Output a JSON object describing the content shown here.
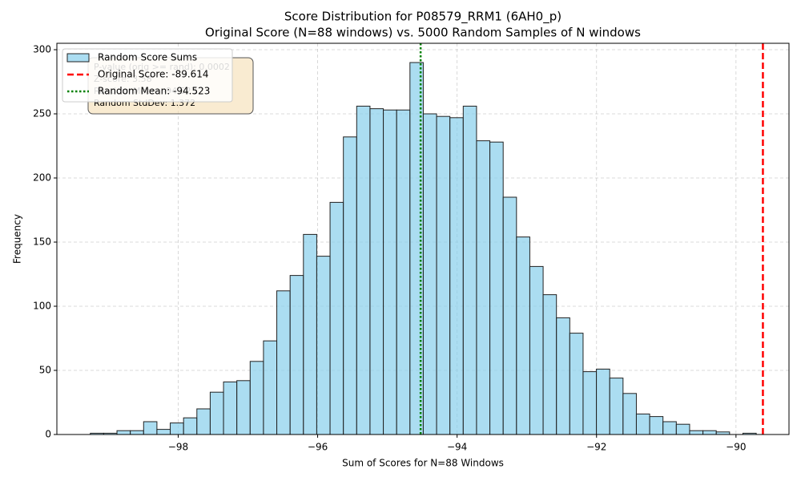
{
  "chart_data": {
    "type": "histogram",
    "title": "Score Distribution for P08579_RRM1 (6AH0_p)",
    "subtitle": "Original Score (N=88 windows) vs. 5000 Random Samples of N windows",
    "x_label": "Sum of Scores for N=88 Windows",
    "y_label": "Frequency",
    "bins": [
      -99.26,
      -99.069,
      -98.878,
      -98.687,
      -98.496,
      -98.305,
      -98.114,
      -97.923,
      -97.732,
      -97.541,
      -97.35,
      -97.159,
      -96.968,
      -96.777,
      -96.586,
      -96.395,
      -96.204,
      -96.013,
      -95.822,
      -95.631,
      -95.44,
      -95.249,
      -95.058,
      -94.867,
      -94.676,
      -94.485,
      -94.294,
      -94.103,
      -93.912,
      -93.721,
      -93.53,
      -93.339,
      -93.148,
      -92.957,
      -92.766,
      -92.575,
      -92.384,
      -92.193,
      -92.002,
      -91.811,
      -91.62,
      -91.429,
      -91.238,
      -91.047,
      -90.856,
      -90.665,
      -90.474,
      -90.283,
      -90.092,
      -89.901,
      -89.71
    ],
    "series": [
      {
        "name": "Random Score Sums",
        "color": "#87ceeb",
        "values": [
          1,
          1,
          3,
          3,
          10,
          4,
          9,
          13,
          20,
          33,
          41,
          42,
          57,
          73,
          112,
          124,
          156,
          139,
          181,
          232,
          256,
          254,
          253,
          253,
          290,
          250,
          248,
          247,
          256,
          229,
          228,
          185,
          154,
          131,
          109,
          91,
          79,
          49,
          51,
          44,
          32,
          16,
          14,
          10,
          8,
          3,
          3,
          2,
          0,
          1
        ]
      }
    ],
    "vlines": [
      {
        "name": "Original Score: -89.614",
        "value": -89.614,
        "color": "#ff0000",
        "style": "dashed"
      },
      {
        "name": "Random Mean: -94.523",
        "value": -94.523,
        "color": "#008000",
        "style": "dotted"
      }
    ],
    "annotation": [
      "P-value (orig >= rand): 0.0002",
      "Z-score: 3.58",
      "Random Mean: -94.523",
      "Random StdDev: 1.372"
    ],
    "xlim": [
      -99.74,
      -89.24
    ],
    "xticks": [
      {
        "value": -98,
        "label": "−98"
      },
      {
        "value": -96,
        "label": "−96"
      },
      {
        "value": -94,
        "label": "−94"
      },
      {
        "value": -92,
        "label": "−92"
      },
      {
        "value": -90,
        "label": "−90"
      }
    ],
    "ylim": [
      0,
      305
    ],
    "yticks": [
      0,
      50,
      100,
      150,
      200,
      250,
      300
    ],
    "grid": true,
    "legend": "upper left"
  }
}
